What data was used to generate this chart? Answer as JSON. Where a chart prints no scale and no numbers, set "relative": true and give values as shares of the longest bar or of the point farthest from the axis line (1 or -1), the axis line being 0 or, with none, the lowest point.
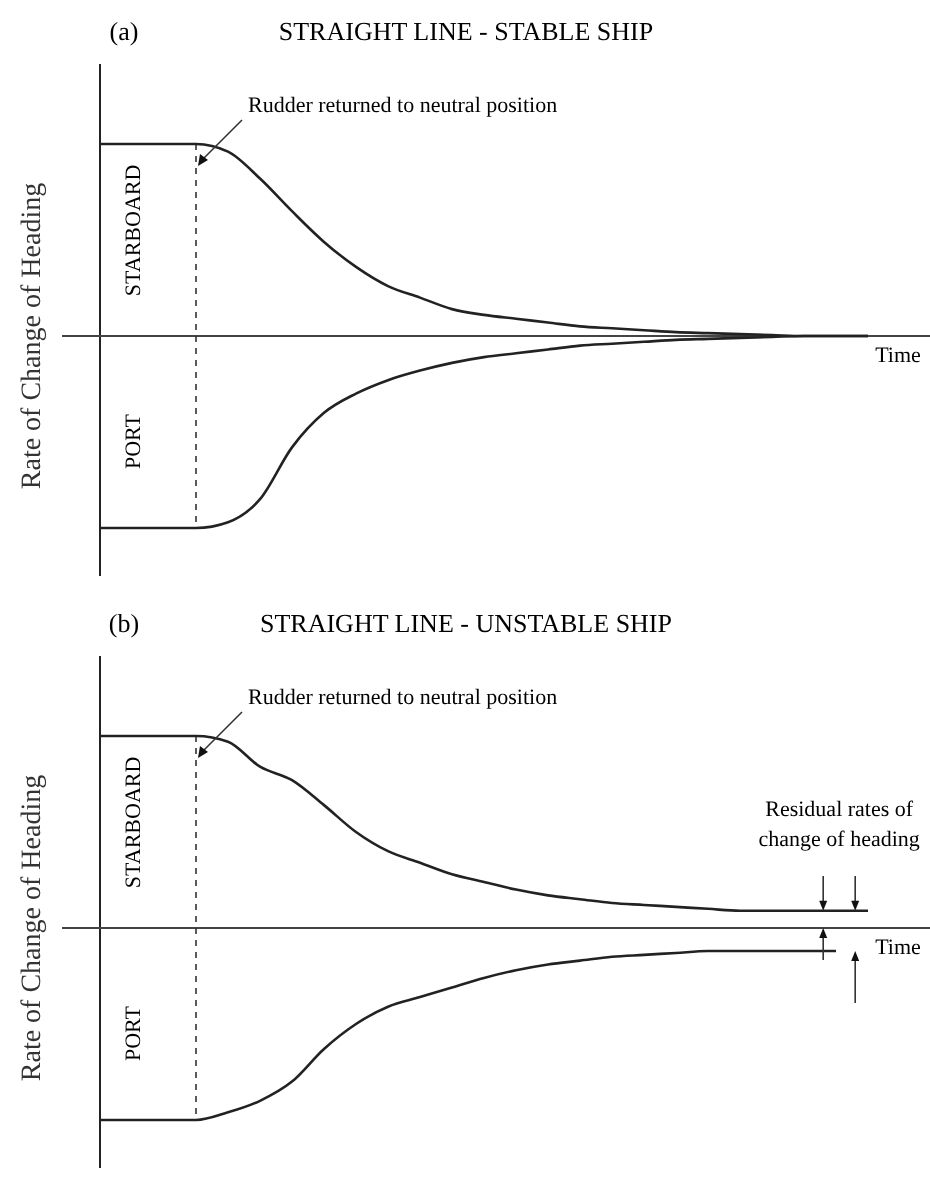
{
  "chart_data": [
    {
      "type": "line",
      "title": "STRAIGHT LINE - STABLE SHIP",
      "xlabel": "Time",
      "ylabel": "Rate of Change of Heading",
      "relative": true,
      "categories": [
        null,
        null,
        null,
        null,
        null,
        null,
        null,
        null,
        null,
        null,
        null,
        null,
        null,
        null,
        null,
        null,
        null,
        null,
        null,
        null,
        null,
        null,
        null,
        null,
        null
      ],
      "series": [
        {
          "name": "STARBOARD",
          "color": "#222222",
          "values": [
            1,
            1,
            1,
            1,
            0.96,
            0.82,
            0.65,
            0.49,
            0.36,
            0.26,
            0.2,
            0.14,
            0.11,
            0.09,
            0.07,
            0.05,
            0.04,
            0.03,
            0.02,
            0.015,
            0.01,
            0.005,
            0,
            0,
            0
          ]
        },
        {
          "name": "PORT",
          "color": "#222222",
          "values": [
            -1,
            -1,
            -1,
            -1,
            -0.97,
            -0.85,
            -0.58,
            -0.4,
            -0.3,
            -0.23,
            -0.18,
            -0.14,
            -0.11,
            -0.09,
            -0.07,
            -0.05,
            -0.04,
            -0.03,
            -0.02,
            -0.015,
            -0.01,
            -0.005,
            0,
            0,
            0
          ]
        }
      ],
      "annotations": [
        "(a)",
        "Rudder returned to neutral position"
      ]
    },
    {
      "type": "line",
      "title": "STRAIGHT LINE - UNSTABLE SHIP",
      "xlabel": "Time",
      "ylabel": "Rate of Change of Heading",
      "relative": true,
      "categories": [
        null,
        null,
        null,
        null,
        null,
        null,
        null,
        null,
        null,
        null,
        null,
        null,
        null,
        null,
        null,
        null,
        null,
        null,
        null,
        null,
        null,
        null,
        null,
        null,
        null
      ],
      "series": [
        {
          "name": "STARBOARD",
          "color": "#222222",
          "values": [
            1,
            1,
            1,
            1,
            0.97,
            0.84,
            0.77,
            0.64,
            0.5,
            0.4,
            0.34,
            0.28,
            0.24,
            0.2,
            0.17,
            0.15,
            0.13,
            0.12,
            0.11,
            0.1,
            0.09,
            0.09,
            0.09,
            0.09,
            0.09
          ]
        },
        {
          "name": "PORT",
          "color": "#222222",
          "values": [
            -1,
            -1,
            -1,
            -1,
            -0.96,
            -0.9,
            -0.8,
            -0.63,
            -0.5,
            -0.41,
            -0.36,
            -0.31,
            -0.26,
            -0.22,
            -0.19,
            -0.17,
            -0.15,
            -0.14,
            -0.13,
            -0.12,
            -0.12,
            -0.12,
            -0.12,
            -0.12,
            null
          ]
        }
      ],
      "annotations": [
        "(b)",
        "Rudder returned to neutral position",
        "Residual rates of change of heading"
      ]
    }
  ]
}
